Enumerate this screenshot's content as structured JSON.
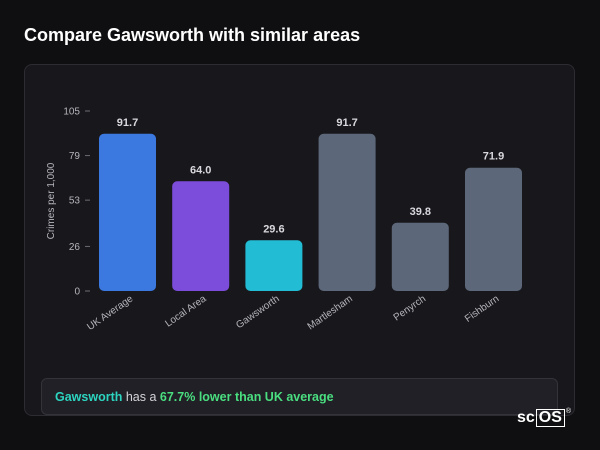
{
  "page": {
    "title": "Compare Gawsworth with similar areas"
  },
  "chart_data": {
    "type": "bar",
    "ylabel": "Crimes per 1,000",
    "yticks": [
      0,
      26,
      53,
      79,
      105
    ],
    "ylim": [
      0,
      105
    ],
    "grid": false,
    "bars": [
      {
        "category": "UK Average",
        "value": 91.7,
        "label": "91.7",
        "color": "#3b78e0"
      },
      {
        "category": "Local Area",
        "value": 64.0,
        "label": "64.0",
        "color": "#7c4ddb"
      },
      {
        "category": "Gawsworth",
        "value": 29.6,
        "label": "29.6",
        "color": "#22bcd4"
      },
      {
        "category": "Martlesham",
        "value": 91.7,
        "label": "91.7",
        "color": "#5c6779"
      },
      {
        "category": "Penyrch",
        "value": 39.8,
        "label": "39.8",
        "color": "#5c6779"
      },
      {
        "category": "Fishburn",
        "value": 71.9,
        "label": "71.9",
        "color": "#5c6779"
      }
    ]
  },
  "summary": {
    "area": "Gawsworth",
    "text_mid": " has a ",
    "comparison": "67.7% lower than UK average"
  },
  "logo": {
    "text_pre": "sc",
    "text_box": "OS",
    "mark": "®"
  }
}
